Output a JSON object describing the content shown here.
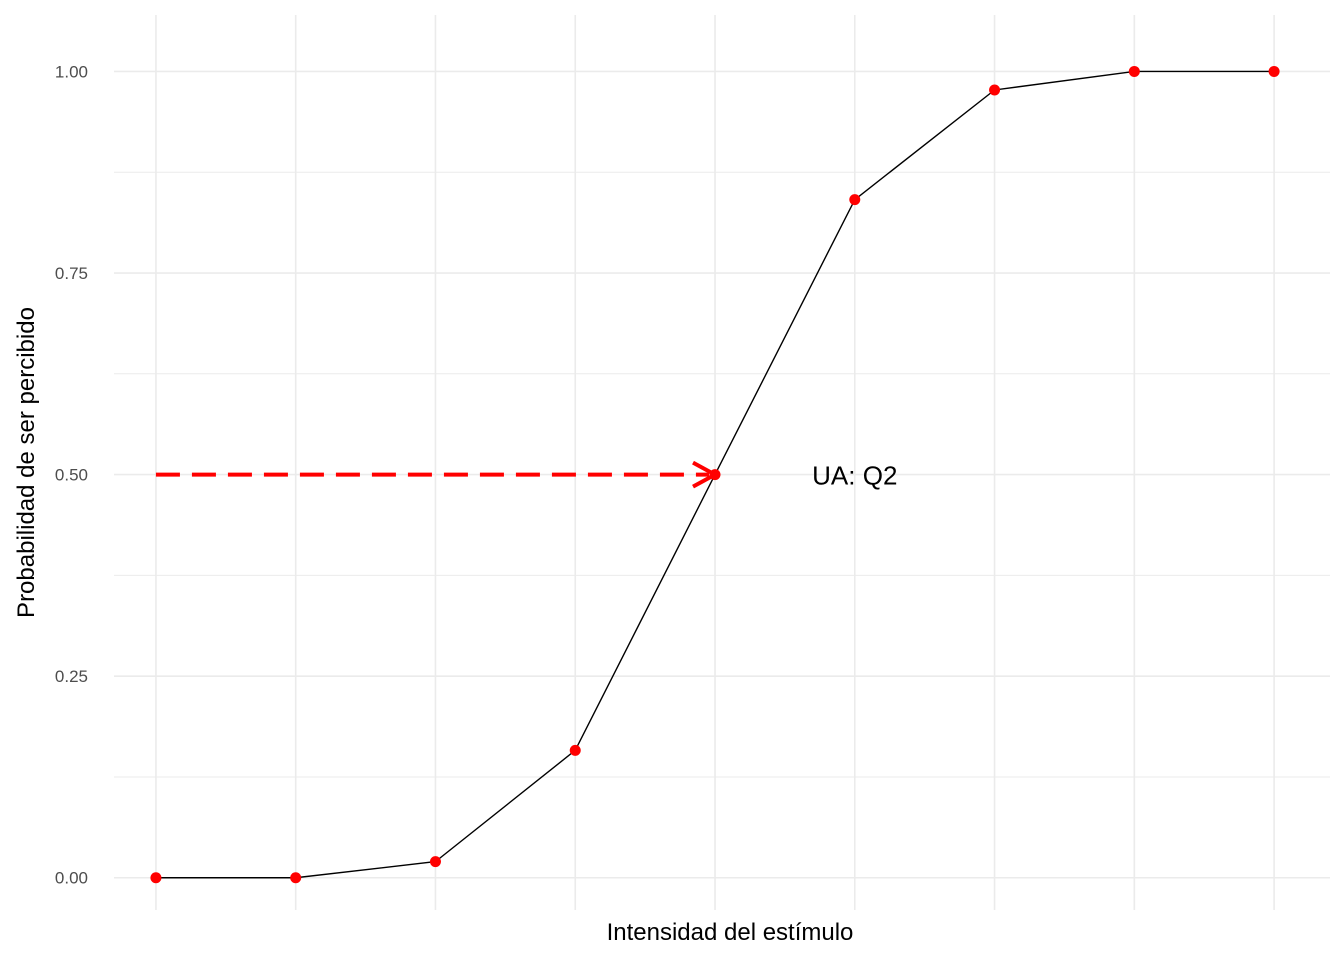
{
  "chart_data": {
    "type": "line",
    "xlabel": "Intensidad del estímulo",
    "ylabel": "Probabilidad de ser percibido",
    "x": [
      1,
      2,
      3,
      4,
      5,
      6,
      7,
      8,
      9
    ],
    "y": [
      0.0,
      0.0,
      0.02,
      0.158,
      0.5,
      0.841,
      0.977,
      1.0,
      1.0
    ],
    "xlim": [
      0.7,
      9.4
    ],
    "ylim": [
      -0.04,
      1.07
    ],
    "yticks": [
      0.0,
      0.25,
      0.5,
      0.75,
      1.0
    ],
    "ytick_labels": [
      "0.00",
      "0.25",
      "0.50",
      "0.75",
      "1.00"
    ],
    "yminor": [
      0.125,
      0.375,
      0.625,
      0.875
    ],
    "xgrid": [
      1,
      2,
      3,
      4,
      5,
      6,
      7,
      8,
      9
    ],
    "grid": true,
    "line_color": "#000000",
    "point_color": "#ff0000",
    "arrow": {
      "from": [
        1,
        0.5
      ],
      "to": [
        5,
        0.5
      ],
      "color": "#ff0000",
      "style": "dashed"
    },
    "annotation": {
      "text": "UA: Q2",
      "x": 6,
      "y": 0.5
    }
  }
}
